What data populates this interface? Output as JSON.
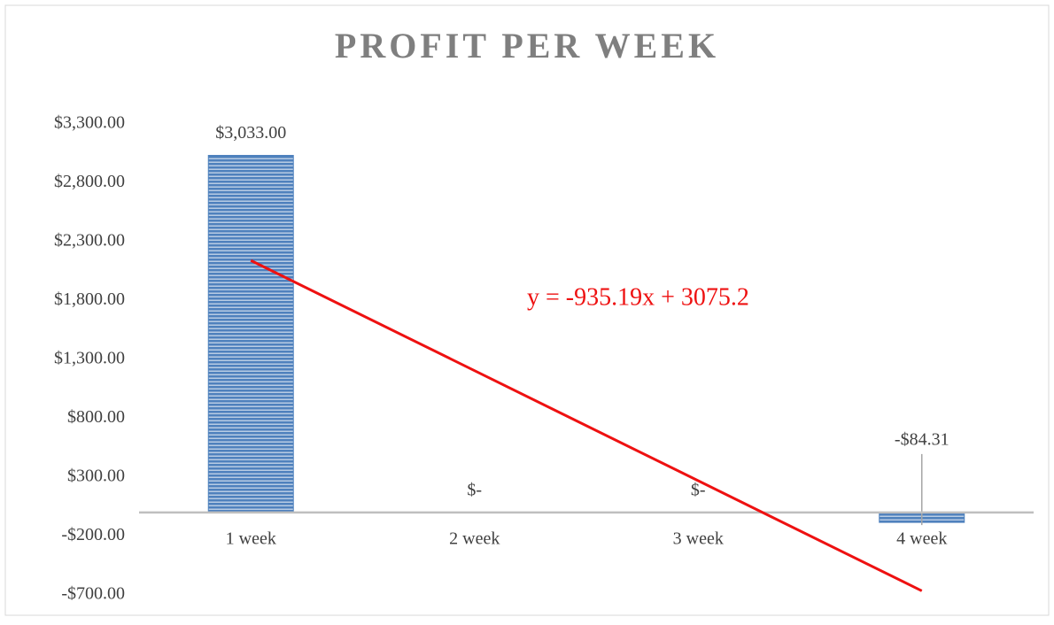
{
  "chart_data": {
    "type": "bar",
    "title": "PROFIT PER WEEK",
    "categories": [
      "1 week",
      "2 week",
      "3 week",
      "4 week"
    ],
    "values": [
      3033,
      0,
      0,
      -84.31
    ],
    "value_labels": [
      "$3,033.00",
      "$-",
      "$-",
      "-$84.31"
    ],
    "color": "#4f81bd",
    "ylim": [
      -700,
      3300
    ],
    "yticks": [
      {
        "value": -700,
        "label": "-$700.00"
      },
      {
        "value": -200,
        "label": "-$200.00"
      },
      {
        "value": 300,
        "label": "$300.00"
      },
      {
        "value": 800,
        "label": "$800.00"
      },
      {
        "value": 1300,
        "label": "$1,300.00"
      },
      {
        "value": 1800,
        "label": "$1,800.00"
      },
      {
        "value": 2300,
        "label": "$2,300.00"
      },
      {
        "value": 2800,
        "label": "$2,800.00"
      },
      {
        "value": 3300,
        "label": "$3,300.00"
      }
    ],
    "grid": false,
    "trendline": {
      "slope": -935.19,
      "intercept": 3075.2,
      "label": "y = -935.19x + 3075.2",
      "color": "#ee1111"
    }
  }
}
